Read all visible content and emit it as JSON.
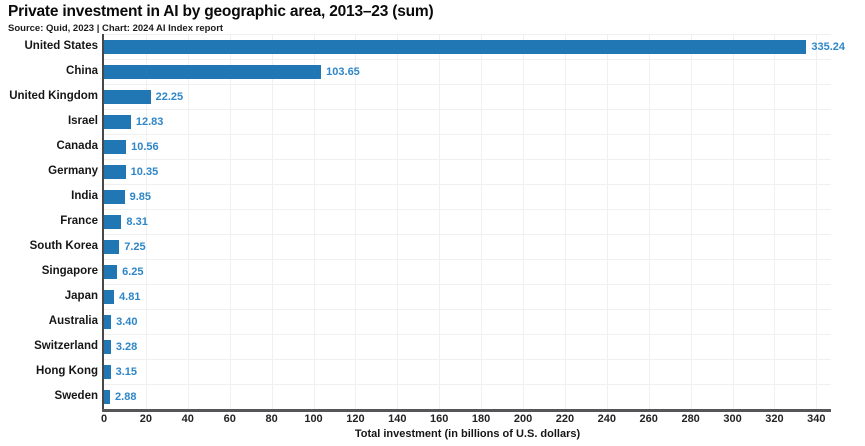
{
  "header": {
    "title": "Private investment in AI by geographic area, 2013–23 (sum)",
    "source": "Source: Quid, 2023 | Chart: 2024 AI Index report"
  },
  "chart_data": {
    "type": "bar",
    "orientation": "horizontal",
    "title": "Private investment in AI by geographic area, 2013–23 (sum)",
    "subtitle": "Source: Quid, 2023 | Chart: 2024 AI Index report",
    "categories": [
      "United States",
      "China",
      "United Kingdom",
      "Israel",
      "Canada",
      "Germany",
      "India",
      "France",
      "South Korea",
      "Singapore",
      "Japan",
      "Australia",
      "Switzerland",
      "Hong Kong",
      "Sweden"
    ],
    "values": [
      335.24,
      103.65,
      22.25,
      12.83,
      10.56,
      10.35,
      9.85,
      8.31,
      7.25,
      6.25,
      4.81,
      3.4,
      3.28,
      3.15,
      2.88
    ],
    "value_labels": [
      "335.24",
      "103.65",
      "22.25",
      "12.83",
      "10.56",
      "10.35",
      "9.85",
      "8.31",
      "7.25",
      "6.25",
      "4.81",
      "3.40",
      "3.28",
      "3.15",
      "2.88"
    ],
    "xlabel": "Total investment (in billions of U.S. dollars)",
    "ylabel": "",
    "xlim": [
      0,
      347
    ],
    "xticks": [
      0,
      20,
      40,
      60,
      80,
      100,
      120,
      140,
      160,
      180,
      200,
      220,
      240,
      260,
      280,
      300,
      320,
      340
    ],
    "grid": true,
    "legend": null,
    "colors": {
      "bar": "#2077b4",
      "value_label": "#2e86c8",
      "grid": "#f0f0f0",
      "spine_left": "#48484a",
      "spine_bottom": "#565658",
      "tick_label": "#232323",
      "category_label": "#161616",
      "title": "#0a0a0a"
    }
  }
}
